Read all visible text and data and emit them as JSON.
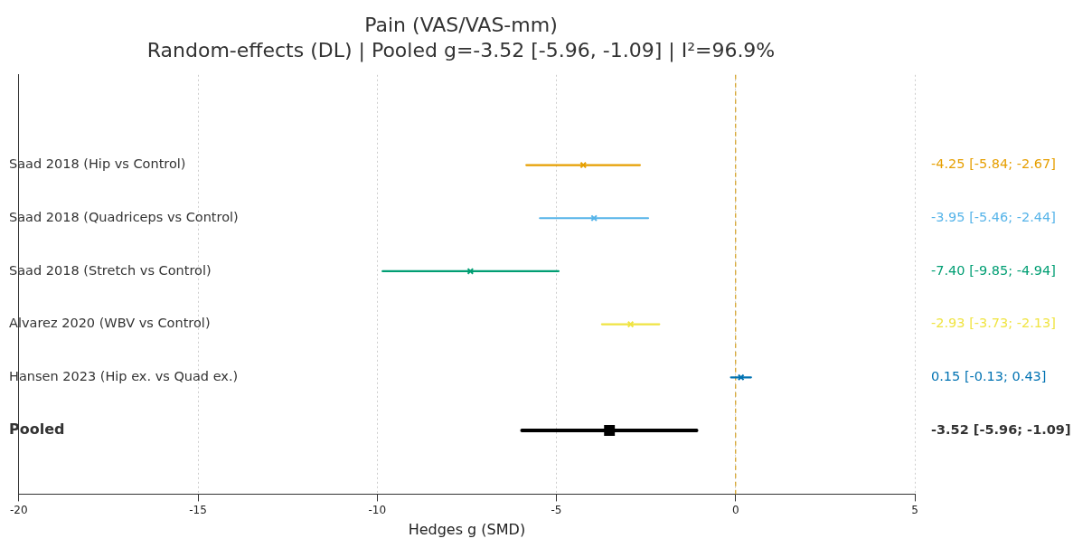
{
  "chart_data": {
    "type": "scatter",
    "title": "Pain (VAS/VAS-mm)",
    "subtitle": "Random-effects (DL) | Pooled g=-3.52 [-5.96, -1.09] | I²=96.9%",
    "xlabel": "Hedges g (SMD)",
    "orientation": "horizontal",
    "categories": [
      "Saad 2018 (Hip vs Control)",
      "Saad 2018 (Quadriceps vs Control)",
      "Saad 2018 (Stretch vs Control)",
      "Alvarez 2020 (WBV vs Control)",
      "Hansen 2023 (Hip ex. vs Quad ex.)",
      "Pooled"
    ],
    "series": [
      {
        "colors": [
          "#e69f00",
          "#56b4e9",
          "#009e73",
          "#f0e442",
          "#0072b2",
          null
        ],
        "marker": "cross",
        "values": [
          -4.25,
          -3.95,
          -7.4,
          -2.93,
          0.15,
          null
        ],
        "errors": [
          [
            -5.84,
            -2.67
          ],
          [
            -5.46,
            -2.44
          ],
          [
            -9.85,
            -4.94
          ],
          [
            -3.73,
            -2.13
          ],
          [
            -0.13,
            0.43
          ],
          null
        ]
      },
      {
        "color": "#000000",
        "marker": "square",
        "values": [
          null,
          null,
          null,
          null,
          null,
          -3.52
        ],
        "errors": [
          null,
          null,
          null,
          null,
          null,
          [
            -5.96,
            -1.09
          ]
        ]
      }
    ],
    "annotations": [
      "-4.25 [-5.84; -2.67]",
      "-3.95 [-5.46; -2.44]",
      "-7.40 [-9.85; -4.94]",
      "-2.93 [-3.73; -2.13]",
      "0.15 [-0.13; 0.43]",
      "-3.52 [-5.96; -1.09]"
    ],
    "xlim": [
      -20,
      5
    ],
    "xticks": [
      -20,
      -15,
      -10,
      -5,
      0,
      5
    ],
    "grid": "x",
    "legend": false,
    "ref_lines": [
      {
        "axis": "x",
        "value": 0,
        "color": "#d4a020",
        "line_style": "dashed"
      }
    ]
  }
}
